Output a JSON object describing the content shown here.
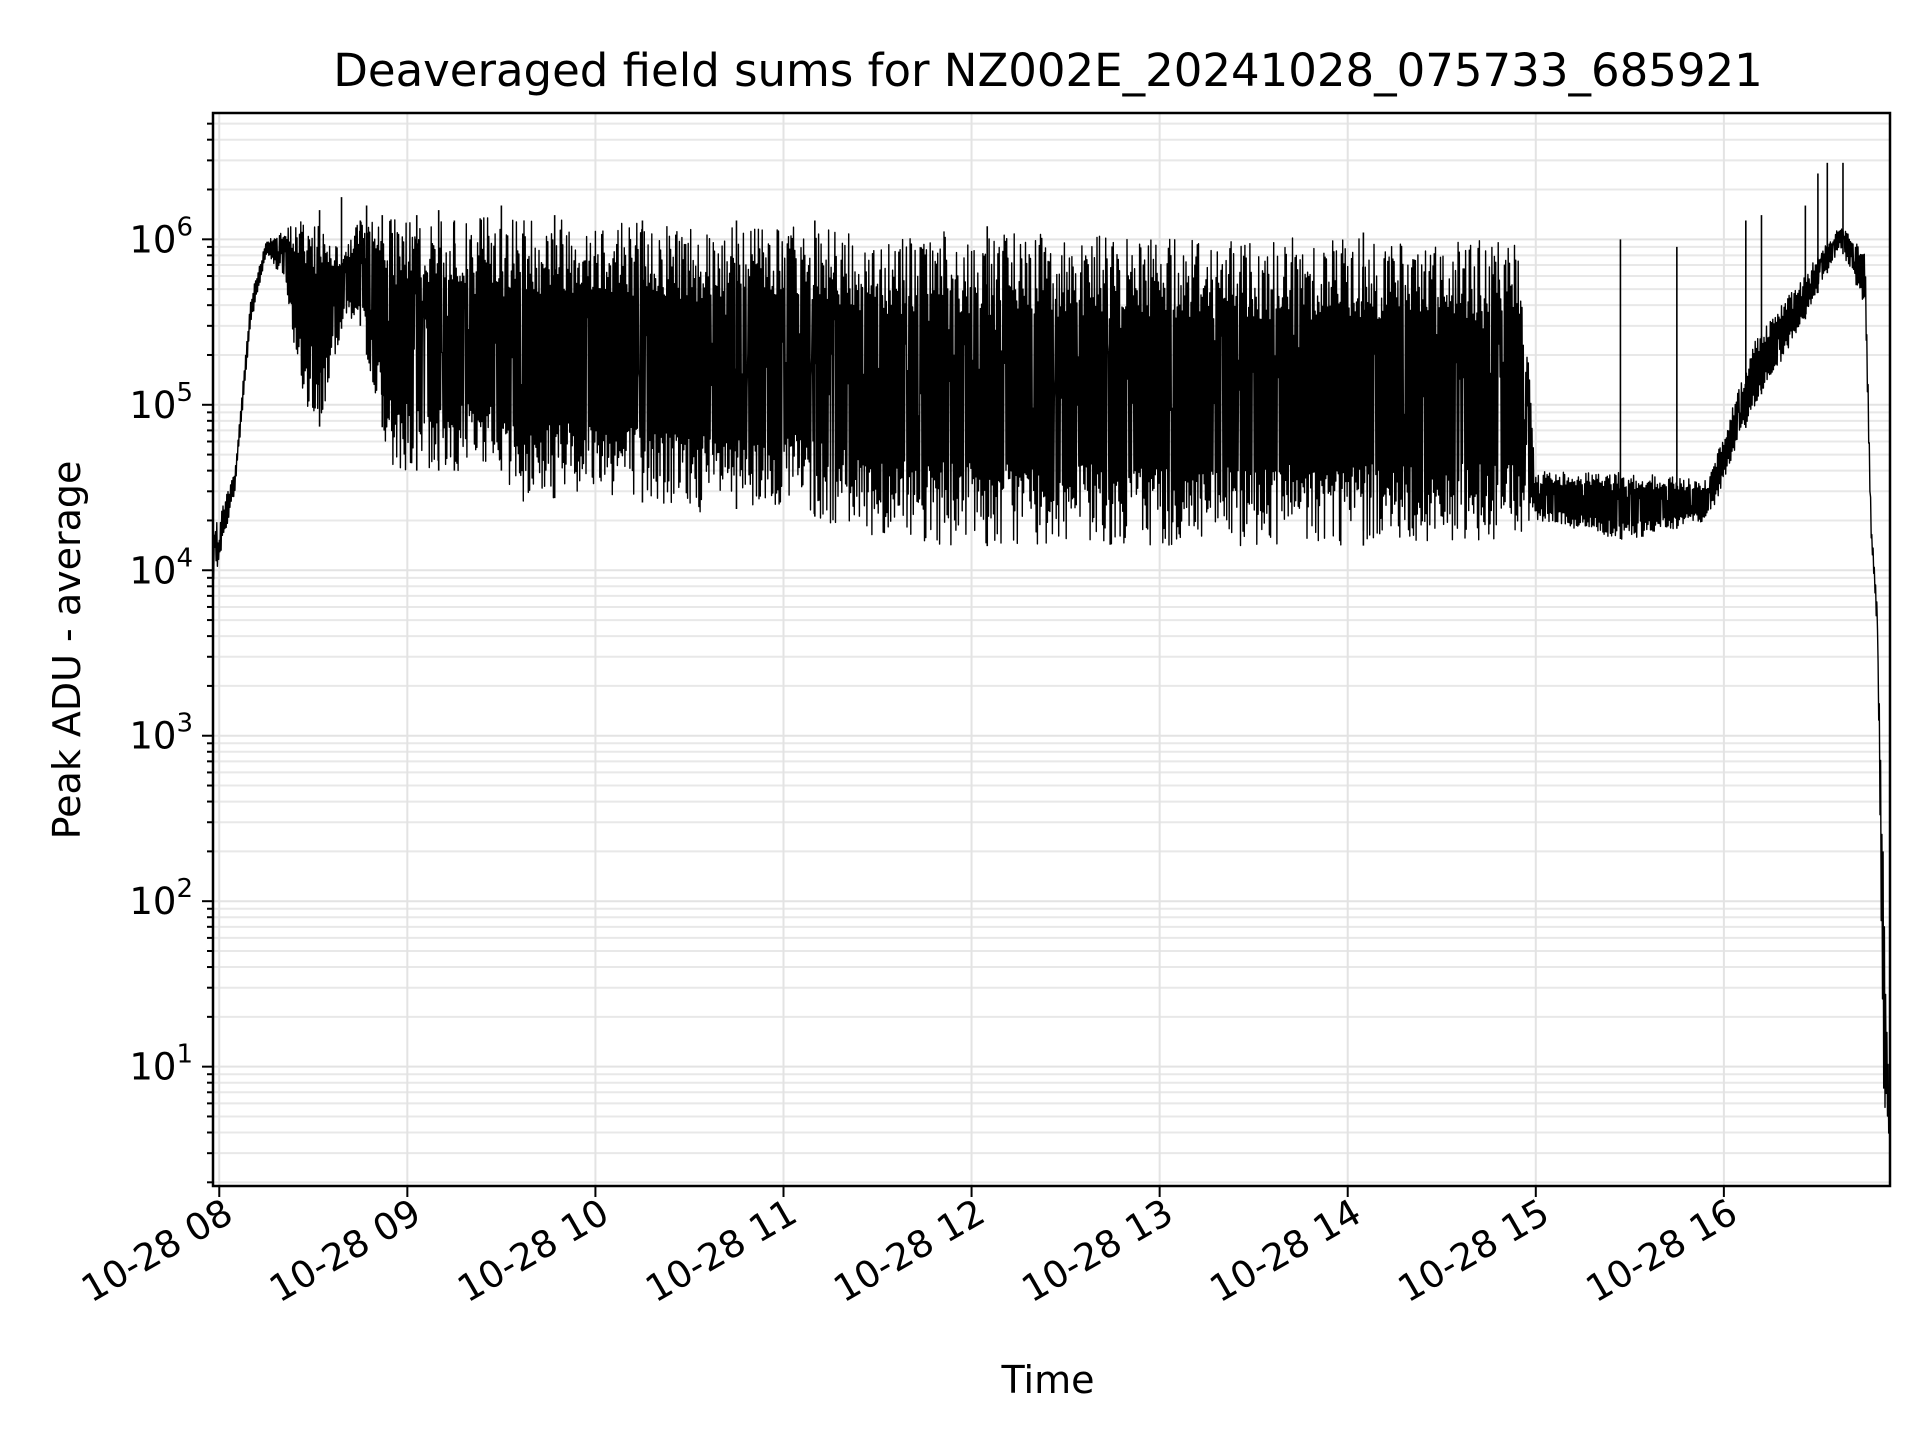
{
  "chart_data": {
    "type": "line",
    "title": "Deaveraged field sums for NZ002E_20241028_075733_685921",
    "xlabel": "Time",
    "ylabel": "Peak ADU - average",
    "yscale": "log",
    "grid": true,
    "xlim": [
      "2024-10-28 07:58",
      "2024-10-28 16:53"
    ],
    "ylim": [
      1.9,
      5800000
    ],
    "x_ticks": [
      {
        "value": "2024-10-28 08:00",
        "label": "10-28 08"
      },
      {
        "value": "2024-10-28 09:00",
        "label": "10-28 09"
      },
      {
        "value": "2024-10-28 10:00",
        "label": "10-28 10"
      },
      {
        "value": "2024-10-28 11:00",
        "label": "10-28 11"
      },
      {
        "value": "2024-10-28 12:00",
        "label": "10-28 12"
      },
      {
        "value": "2024-10-28 13:00",
        "label": "10-28 13"
      },
      {
        "value": "2024-10-28 14:00",
        "label": "10-28 14"
      },
      {
        "value": "2024-10-28 15:00",
        "label": "10-28 15"
      },
      {
        "value": "2024-10-28 16:00",
        "label": "10-28 16"
      }
    ],
    "y_ticks": [
      {
        "value": 10,
        "base": "10",
        "exp": "1"
      },
      {
        "value": 100,
        "base": "10",
        "exp": "2"
      },
      {
        "value": 1000,
        "base": "10",
        "exp": "3"
      },
      {
        "value": 10000,
        "base": "10",
        "exp": "4"
      },
      {
        "value": 100000,
        "base": "10",
        "exp": "5"
      },
      {
        "value": 1000000,
        "base": "10",
        "exp": "6"
      }
    ],
    "series": [
      {
        "color": "#000000",
        "envelope": [
          {
            "t": "2024-10-28 07:58",
            "low": 8000,
            "high": 17000
          },
          {
            "t": "2024-10-28 08:05",
            "low": 30000,
            "high": 40000
          },
          {
            "t": "2024-10-28 08:10",
            "low": 300000,
            "high": 450000
          },
          {
            "t": "2024-10-28 08:15",
            "low": 800000,
            "high": 1000000
          },
          {
            "t": "2024-10-28 08:20",
            "low": 600000,
            "high": 1150000
          },
          {
            "t": "2024-10-28 08:30",
            "low": 50000,
            "high": 1500000
          },
          {
            "t": "2024-10-28 08:40",
            "low": 350000,
            "high": 900000
          },
          {
            "t": "2024-10-28 08:45",
            "low": 300000,
            "high": 1400000
          },
          {
            "t": "2024-10-28 08:55",
            "low": 40000,
            "high": 1400000
          },
          {
            "t": "2024-10-28 09:30",
            "low": 40000,
            "high": 1500000
          },
          {
            "t": "2024-10-28 09:35",
            "low": 25000,
            "high": 1400000
          },
          {
            "t": "2024-10-28 10:00",
            "low": 30000,
            "high": 1400000
          },
          {
            "t": "2024-10-28 10:30",
            "low": 22000,
            "high": 1300000
          },
          {
            "t": "2024-10-28 11:00",
            "low": 25000,
            "high": 1300000
          },
          {
            "t": "2024-10-28 11:30",
            "low": 15000,
            "high": 1200000
          },
          {
            "t": "2024-10-28 12:00",
            "low": 14000,
            "high": 1200000
          },
          {
            "t": "2024-10-28 13:00",
            "low": 14000,
            "high": 1100000
          },
          {
            "t": "2024-10-28 14:00",
            "low": 14000,
            "high": 1100000
          },
          {
            "t": "2024-10-28 14:55",
            "low": 15000,
            "high": 1050000
          },
          {
            "t": "2024-10-28 15:00",
            "low": 20000,
            "high": 40000
          },
          {
            "t": "2024-10-28 15:30",
            "low": 15000,
            "high": 40000
          },
          {
            "t": "2024-10-28 15:55",
            "low": 20000,
            "high": 35000
          },
          {
            "t": "2024-10-28 16:10",
            "low": 100000,
            "high": 250000
          },
          {
            "t": "2024-10-28 16:25",
            "low": 300000,
            "high": 600000
          },
          {
            "t": "2024-10-28 16:37",
            "low": 900000,
            "high": 1200000
          },
          {
            "t": "2024-10-28 16:45",
            "low": 400000,
            "high": 900000
          },
          {
            "t": "2024-10-28 16:47",
            "low": 15000,
            "high": 20000
          },
          {
            "t": "2024-10-28 16:49",
            "low": 4000,
            "high": 6000
          },
          {
            "t": "2024-10-28 16:51",
            "low": 3.8,
            "high": 150
          },
          {
            "t": "2024-10-28 16:53",
            "low": 3.8,
            "high": 4.5
          }
        ],
        "spikes": [
          {
            "t": "2024-10-28 08:32",
            "value": 1500000
          },
          {
            "t": "2024-10-28 08:39",
            "value": 1800000
          },
          {
            "t": "2024-10-28 08:45",
            "value": 1300000
          },
          {
            "t": "2024-10-28 08:47",
            "value": 1600000
          },
          {
            "t": "2024-10-28 08:52",
            "value": 1400000
          },
          {
            "t": "2024-10-28 09:03",
            "value": 1400000
          },
          {
            "t": "2024-10-28 09:10",
            "value": 1500000
          },
          {
            "t": "2024-10-28 09:15",
            "value": 1300000
          },
          {
            "t": "2024-10-28 09:30",
            "value": 1600000
          },
          {
            "t": "2024-10-28 09:47",
            "value": 1400000
          },
          {
            "t": "2024-10-28 10:15",
            "value": 1300000
          },
          {
            "t": "2024-10-28 10:45",
            "value": 1300000
          },
          {
            "t": "2024-10-28 11:10",
            "value": 1300000
          },
          {
            "t": "2024-10-28 12:05",
            "value": 1200000
          },
          {
            "t": "2024-10-28 14:05",
            "value": 1100000
          },
          {
            "t": "2024-10-28 15:27",
            "value": 1000000
          },
          {
            "t": "2024-10-28 15:45",
            "value": 900000
          },
          {
            "t": "2024-10-28 16:07",
            "value": 1300000
          },
          {
            "t": "2024-10-28 16:12",
            "value": 1400000
          },
          {
            "t": "2024-10-28 16:26",
            "value": 1600000
          },
          {
            "t": "2024-10-28 16:30",
            "value": 2500000
          },
          {
            "t": "2024-10-28 16:33",
            "value": 2900000
          },
          {
            "t": "2024-10-28 16:38",
            "value": 2900000
          }
        ]
      }
    ]
  }
}
